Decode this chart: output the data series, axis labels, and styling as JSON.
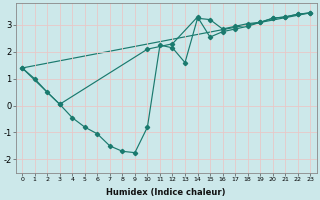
{
  "xlabel": "Humidex (Indice chaleur)",
  "ylabel": "",
  "xlim": [
    -0.5,
    23.5
  ],
  "ylim": [
    -2.5,
    3.8
  ],
  "xticks": [
    0,
    1,
    2,
    3,
    4,
    5,
    6,
    7,
    8,
    9,
    10,
    11,
    12,
    13,
    14,
    15,
    16,
    17,
    18,
    19,
    20,
    21,
    22,
    23
  ],
  "yticks": [
    -2,
    -1,
    0,
    1,
    2,
    3
  ],
  "bg_color": "#cce8ea",
  "line_color": "#1a7a6e",
  "grid_color": "#e8c8c8",
  "line1_x": [
    0,
    1,
    2,
    3,
    4,
    5,
    6,
    7,
    8,
    9,
    10,
    11,
    12,
    13,
    14,
    15,
    16,
    17,
    18,
    19,
    20,
    21,
    22,
    23
  ],
  "line1_y": [
    1.4,
    1.0,
    0.5,
    0.05,
    -0.45,
    -0.8,
    -1.05,
    -1.5,
    -1.7,
    -1.75,
    -0.8,
    2.25,
    2.15,
    1.6,
    3.25,
    3.2,
    2.85,
    2.95,
    3.05,
    3.1,
    3.25,
    3.3,
    3.4,
    3.45
  ],
  "line2_x": [
    0,
    3,
    10,
    12,
    14,
    15,
    16,
    17,
    18,
    19,
    20,
    21,
    22,
    23
  ],
  "line2_y": [
    1.4,
    0.05,
    2.1,
    2.3,
    3.3,
    2.55,
    2.75,
    2.85,
    2.95,
    3.1,
    3.25,
    3.3,
    3.4,
    3.45
  ],
  "line3_x": [
    0,
    23
  ],
  "line3_y": [
    1.4,
    3.45
  ]
}
